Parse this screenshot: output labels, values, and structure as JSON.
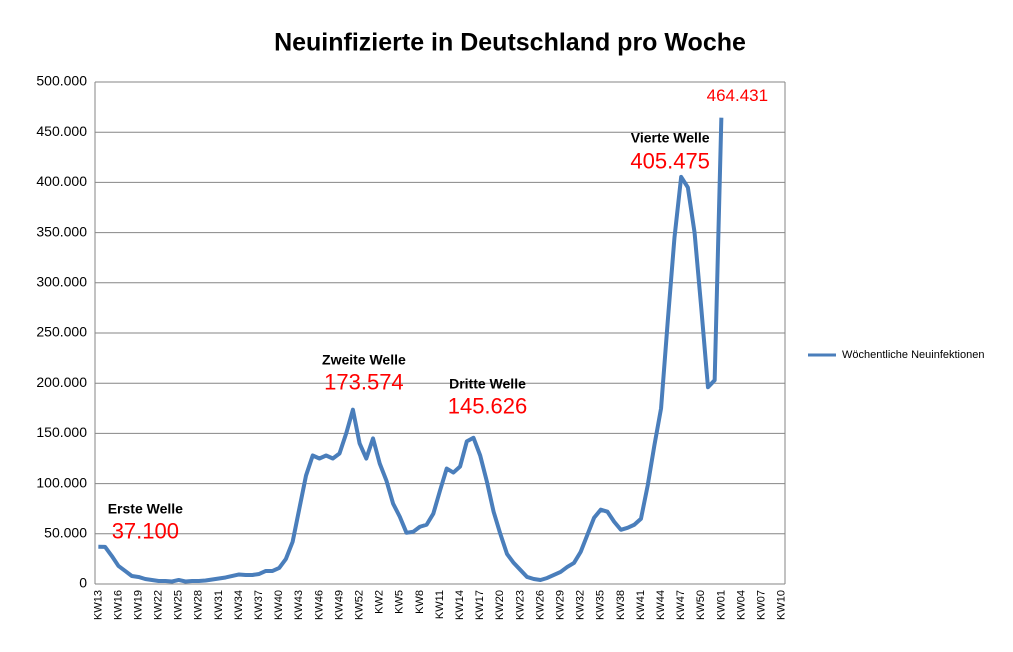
{
  "chart_data": {
    "type": "line",
    "title": "Neuinfizierte in Deutschland pro Woche",
    "categories": [
      "KW13",
      null,
      null,
      "KW16",
      null,
      null,
      "KW19",
      null,
      null,
      "KW22",
      null,
      null,
      "KW25",
      null,
      null,
      "KW28",
      null,
      null,
      "KW31",
      null,
      null,
      "KW34",
      null,
      null,
      "KW37",
      null,
      null,
      "KW40",
      null,
      null,
      "KW43",
      null,
      null,
      "KW46",
      null,
      null,
      "KW49",
      null,
      null,
      "KW52",
      null,
      null,
      "KW2",
      null,
      null,
      "KW5",
      null,
      null,
      "KW8",
      null,
      null,
      "KW11",
      null,
      null,
      "KW14",
      null,
      null,
      "KW17",
      null,
      null,
      "KW20",
      null,
      null,
      "KW23",
      null,
      null,
      "KW26",
      null,
      null,
      "KW29",
      null,
      null,
      "KW32",
      null,
      null,
      "KW35",
      null,
      null,
      "KW38",
      null,
      null,
      "KW41",
      null,
      null,
      "KW44",
      null,
      null,
      "KW47",
      null,
      null,
      "KW50",
      null,
      null,
      "KW01",
      null,
      null,
      "KW04",
      null,
      null,
      "KW07",
      null,
      null,
      "KW10"
    ],
    "series": [
      {
        "name": "Wöchentliche Neuinfektionen",
        "color": "#4a7ebb",
        "values": [
          37100,
          37000,
          28000,
          18000,
          13000,
          8000,
          7000,
          5000,
          4000,
          3000,
          3000,
          2500,
          4000,
          2500,
          3000,
          3000,
          3500,
          4500,
          5500,
          6500,
          8000,
          9500,
          9000,
          9000,
          10000,
          13000,
          13000,
          16000,
          25000,
          42000,
          75000,
          108000,
          128000,
          125000,
          128000,
          125000,
          130000,
          150000,
          173574,
          140000,
          125000,
          145000,
          120000,
          103000,
          80000,
          67000,
          51000,
          52000,
          57000,
          59000,
          70000,
          93000,
          115000,
          111000,
          117000,
          142000,
          145626,
          128000,
          102000,
          72000,
          50000,
          30000,
          21000,
          14000,
          7000,
          5000,
          4000,
          6000,
          9000,
          12000,
          17000,
          21000,
          32000,
          49000,
          66000,
          74000,
          72000,
          62000,
          54000,
          56000,
          59000,
          65000,
          98000,
          138000,
          175000,
          262000,
          345000,
          405475,
          395000,
          350000,
          275000,
          196000,
          203000,
          464431,
          null,
          null,
          null,
          null,
          null,
          null,
          null,
          null,
          null
        ],
        "value_labels": [
          "37.100",
          null,
          null,
          null,
          null,
          null,
          null,
          null,
          null,
          null,
          null,
          null,
          null,
          null,
          null,
          null,
          null,
          null,
          null,
          null,
          null,
          null,
          null,
          null,
          null,
          null,
          null,
          null,
          null,
          null,
          null,
          null,
          null,
          null,
          null,
          null,
          null,
          null,
          "173.574",
          null,
          null,
          null,
          null,
          null,
          null,
          null,
          null,
          null,
          null,
          null,
          null,
          null,
          null,
          null,
          null,
          null,
          "145.626",
          null,
          null,
          null,
          null,
          null,
          null,
          null,
          null,
          null,
          null,
          null,
          null,
          null,
          null,
          null,
          null,
          null,
          null,
          null,
          null,
          null,
          null,
          null,
          null,
          null,
          null,
          null,
          null,
          null,
          null,
          "405.475",
          null,
          null,
          null,
          null,
          null,
          "464.431",
          null,
          null,
          null,
          null,
          null,
          null,
          null,
          null,
          null
        ]
      }
    ],
    "annotations": [
      "Erste Welle",
      "Zweite Welle",
      "Dritte Welle",
      "Vierte Welle"
    ],
    "ylim": [
      0,
      500000
    ],
    "yticks": [
      0,
      {
        "value": 50000,
        "label": "50.000"
      },
      {
        "value": 100000,
        "label": "100.000"
      },
      {
        "value": 150000,
        "label": "150.000"
      },
      {
        "value": 200000,
        "label": "200.000"
      },
      {
        "value": 250000,
        "label": "250.000"
      },
      {
        "value": 300000,
        "label": "300.000"
      },
      {
        "value": 350000,
        "label": "350.000"
      },
      {
        "value": 400000,
        "label": "400.000"
      },
      {
        "value": 450000,
        "label": "450.000"
      },
      {
        "value": 500000,
        "label": "500.000"
      }
    ],
    "grid": true,
    "legend": "right"
  }
}
